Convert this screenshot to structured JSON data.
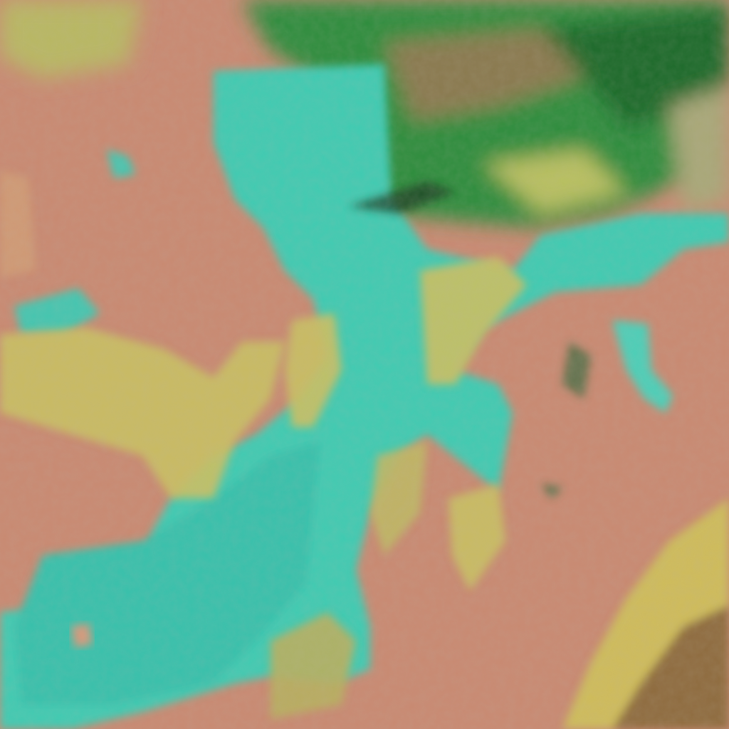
{
  "image": {
    "kind": "false-color satellite imagery",
    "colors": {
      "land": "#c98a72",
      "land_light": "#d49a7c",
      "water_cloud": "#3fcbb2",
      "water_deep": "#35b9a6",
      "yellow_cloud": "#c9c064",
      "vegetation": "#2f8d3c",
      "vegetation_dark": "#1f5a28",
      "mountain_brown": "#8a6a3a"
    }
  }
}
